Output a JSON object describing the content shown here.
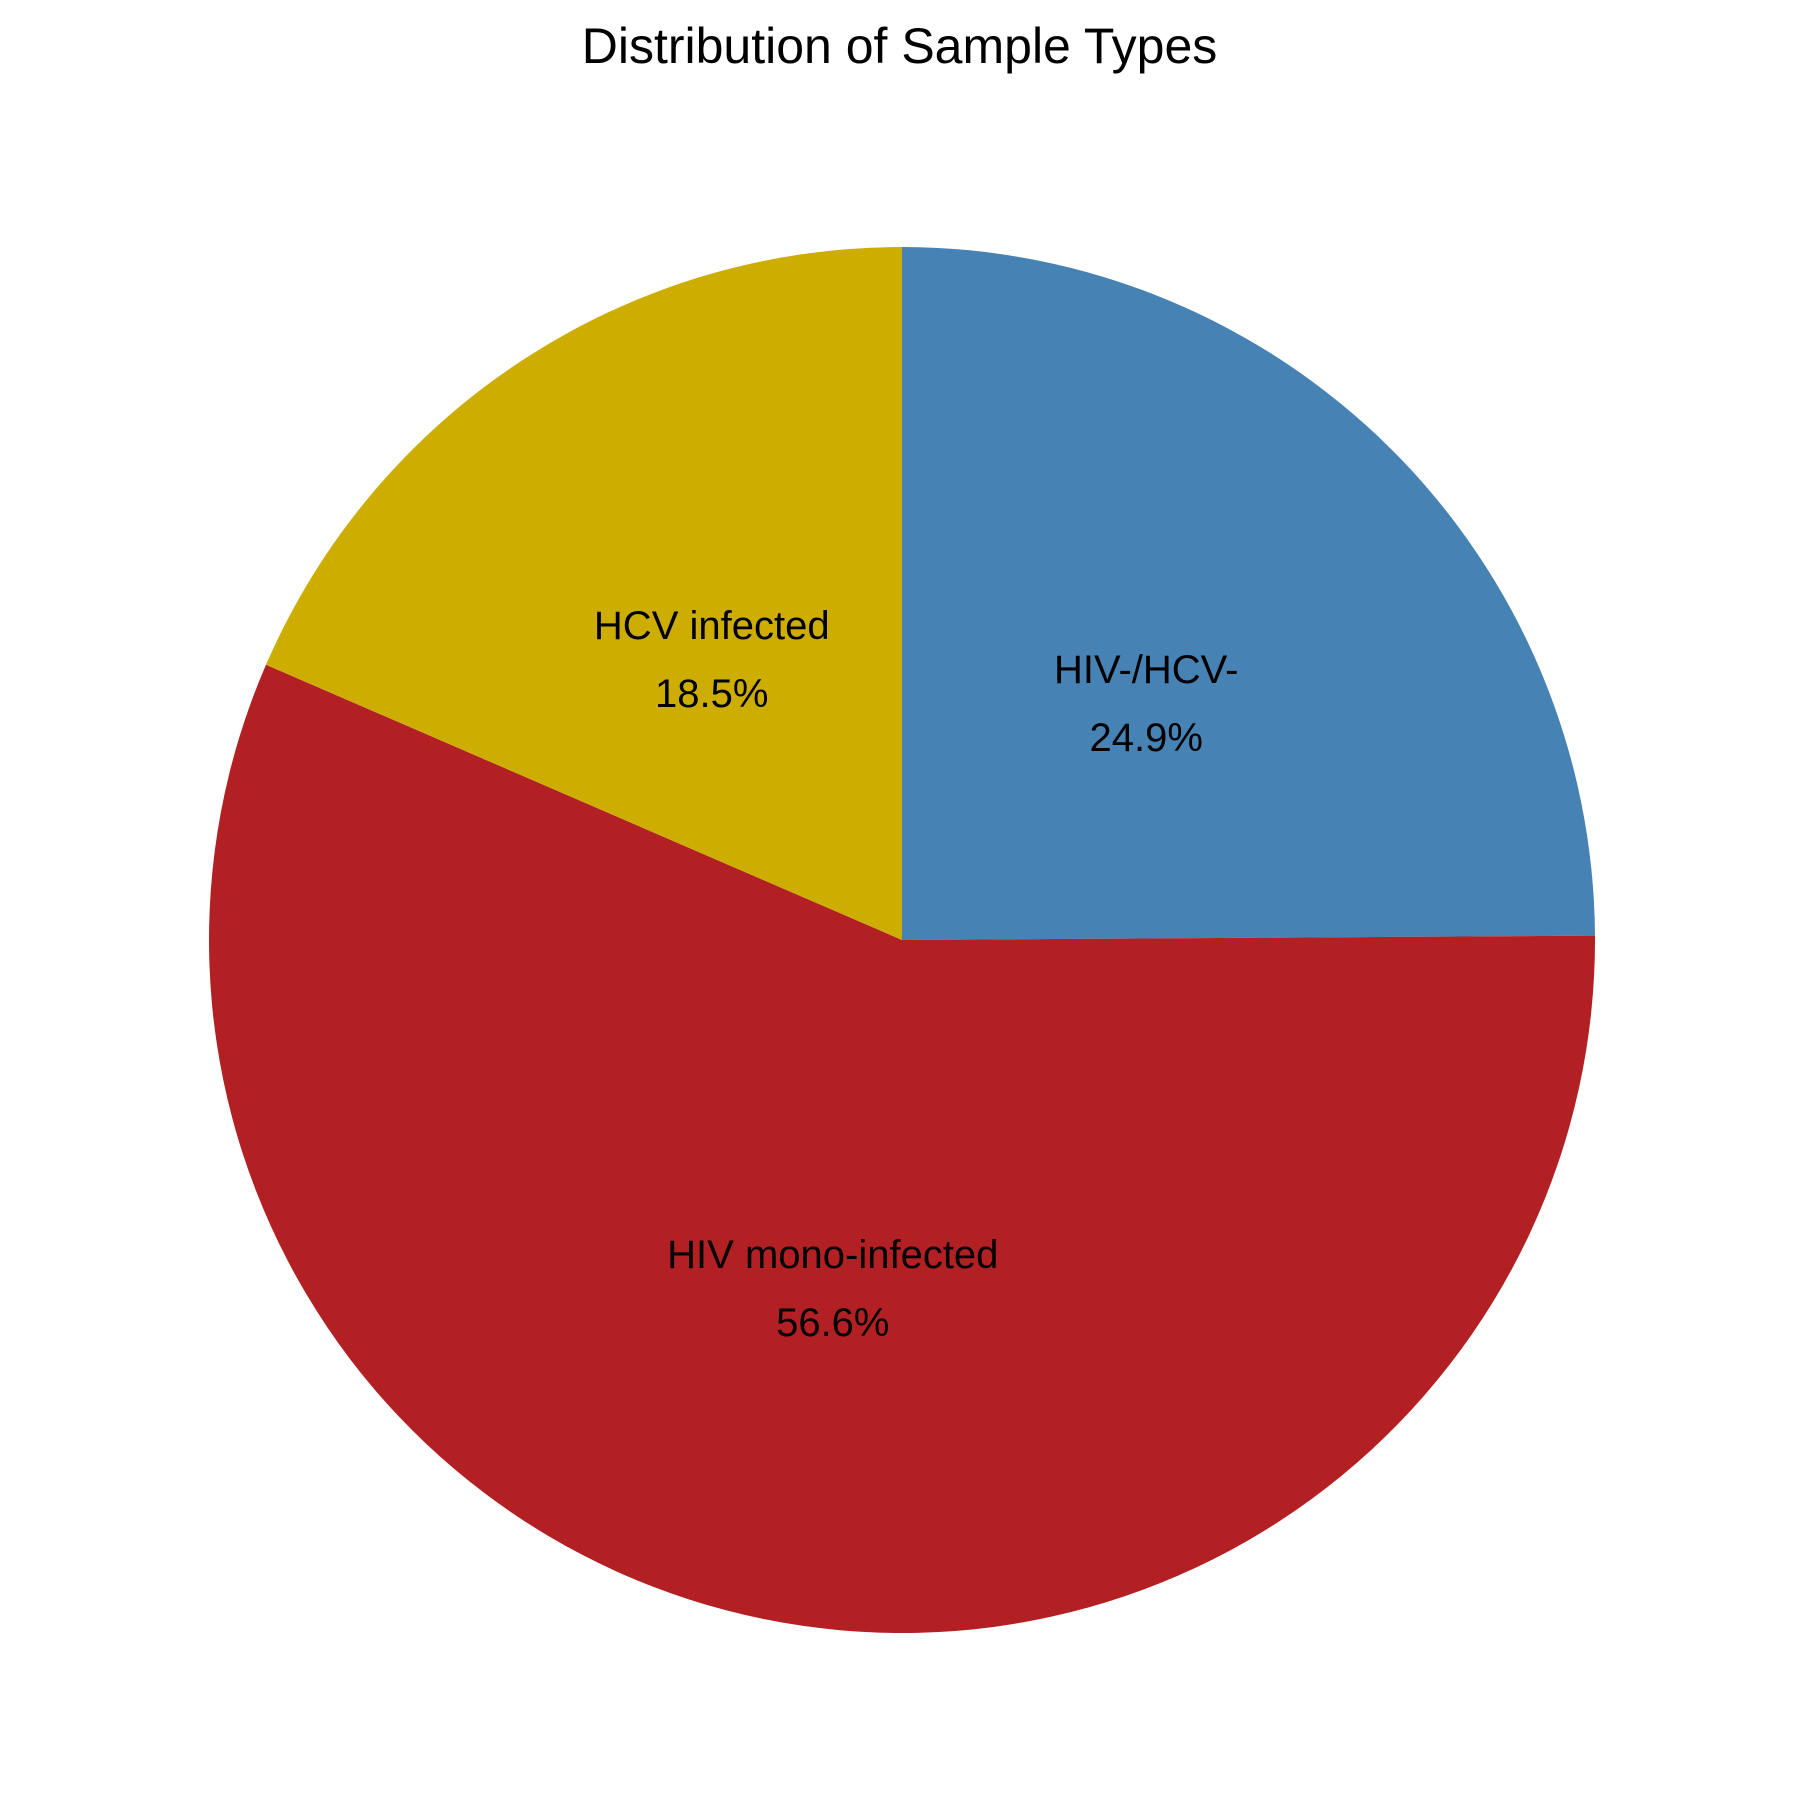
{
  "chart_data": {
    "type": "pie",
    "title": "Distribution of Sample Types",
    "slices": [
      {
        "label": "HIV-/HCV-",
        "value": 24.9,
        "value_label": "24.9%",
        "color": "#4682B4"
      },
      {
        "label": "HIV mono-infected",
        "value": 56.6,
        "value_label": "56.6%",
        "color": "#B22023"
      },
      {
        "label": "HCV infected",
        "value": 18.5,
        "value_label": "18.5%",
        "color": "#CCAD00"
      }
    ],
    "start_angle": "12 o'clock",
    "direction": "clockwise",
    "legend": "none"
  }
}
